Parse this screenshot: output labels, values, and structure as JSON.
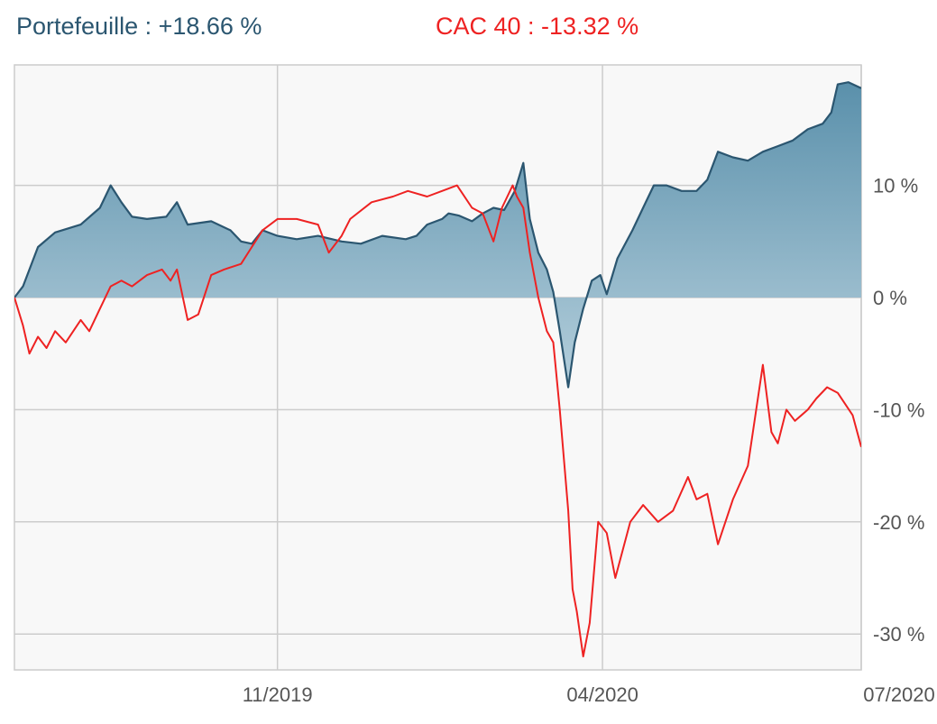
{
  "legend": {
    "portfolio_label": "Portefeuille : +18.66 %",
    "index_label": "CAC 40 : -13.32 %"
  },
  "colors": {
    "portfolio_line": "#2b5670",
    "portfolio_fill_top": "#5a90ab",
    "portfolio_fill_bottom": "#b5cfdc",
    "index_line": "#ee2222",
    "plot_bg": "#f8f8f8",
    "grid": "#cccccc",
    "axis_text": "#555555"
  },
  "chart_data": {
    "type": "area",
    "x_axis": {
      "range": [
        "2019-07-01",
        "2020-07-31"
      ],
      "ticks": [
        {
          "date": "2019-11-01",
          "label": "11/2019"
        },
        {
          "date": "2020-04-01",
          "label": "04/2020"
        },
        {
          "date": "2020-07-31",
          "label": "07/2020"
        }
      ]
    },
    "y_axis": {
      "unit": "%",
      "range": [
        -33,
        21
      ],
      "position": "right",
      "ticks": [
        {
          "value": 10,
          "label": "10 %"
        },
        {
          "value": 0,
          "label": "0 %"
        },
        {
          "value": -10,
          "label": "-10 %"
        },
        {
          "value": -20,
          "label": "-20 %"
        },
        {
          "value": -30,
          "label": "-30 %"
        }
      ]
    },
    "grid": true,
    "series": [
      {
        "name": "Portefeuille",
        "style": "area",
        "points": [
          [
            "2019-07-01",
            0
          ],
          [
            "2019-07-05",
            1
          ],
          [
            "2019-07-12",
            4.5
          ],
          [
            "2019-07-20",
            5.8
          ],
          [
            "2019-08-01",
            6.5
          ],
          [
            "2019-08-10",
            8
          ],
          [
            "2019-08-15",
            10
          ],
          [
            "2019-08-20",
            8.5
          ],
          [
            "2019-08-25",
            7.2
          ],
          [
            "2019-09-01",
            7
          ],
          [
            "2019-09-10",
            7.2
          ],
          [
            "2019-09-15",
            8.5
          ],
          [
            "2019-09-20",
            6.5
          ],
          [
            "2019-10-01",
            6.8
          ],
          [
            "2019-10-10",
            6
          ],
          [
            "2019-10-15",
            5
          ],
          [
            "2019-10-20",
            4.8
          ],
          [
            "2019-10-25",
            6
          ],
          [
            "2019-11-01",
            5.5
          ],
          [
            "2019-11-10",
            5.2
          ],
          [
            "2019-11-20",
            5.5
          ],
          [
            "2019-12-01",
            5
          ],
          [
            "2019-12-10",
            4.8
          ],
          [
            "2019-12-20",
            5.5
          ],
          [
            "2019-12-31",
            5.2
          ],
          [
            "2020-01-05",
            5.5
          ],
          [
            "2020-01-10",
            6.5
          ],
          [
            "2020-01-17",
            7
          ],
          [
            "2020-01-20",
            7.5
          ],
          [
            "2020-01-25",
            7.3
          ],
          [
            "2020-01-31",
            6.8
          ],
          [
            "2020-02-05",
            7.5
          ],
          [
            "2020-02-10",
            8
          ],
          [
            "2020-02-15",
            7.8
          ],
          [
            "2020-02-20",
            9.5
          ],
          [
            "2020-02-24",
            12
          ],
          [
            "2020-02-27",
            7
          ],
          [
            "2020-03-02",
            4
          ],
          [
            "2020-03-06",
            2.5
          ],
          [
            "2020-03-09",
            0.5
          ],
          [
            "2020-03-12",
            -3
          ],
          [
            "2020-03-16",
            -8
          ],
          [
            "2020-03-19",
            -4
          ],
          [
            "2020-03-23",
            -1
          ],
          [
            "2020-03-27",
            1.5
          ],
          [
            "2020-03-31",
            2
          ],
          [
            "2020-04-03",
            0.3
          ],
          [
            "2020-04-08",
            3.5
          ],
          [
            "2020-04-15",
            6
          ],
          [
            "2020-04-20",
            8
          ],
          [
            "2020-04-25",
            10
          ],
          [
            "2020-05-01",
            10
          ],
          [
            "2020-05-08",
            9.5
          ],
          [
            "2020-05-15",
            9.5
          ],
          [
            "2020-05-20",
            10.5
          ],
          [
            "2020-05-25",
            13
          ],
          [
            "2020-06-01",
            12.5
          ],
          [
            "2020-06-08",
            12.2
          ],
          [
            "2020-06-15",
            13
          ],
          [
            "2020-06-22",
            13.5
          ],
          [
            "2020-06-29",
            14
          ],
          [
            "2020-07-06",
            15
          ],
          [
            "2020-07-13",
            15.5
          ],
          [
            "2020-07-17",
            16.5
          ],
          [
            "2020-07-20",
            19
          ],
          [
            "2020-07-25",
            19.2
          ],
          [
            "2020-07-31",
            18.66
          ]
        ]
      },
      {
        "name": "CAC 40",
        "style": "line",
        "points": [
          [
            "2019-07-01",
            0
          ],
          [
            "2019-07-05",
            -2.5
          ],
          [
            "2019-07-08",
            -5
          ],
          [
            "2019-07-12",
            -3.5
          ],
          [
            "2019-07-16",
            -4.5
          ],
          [
            "2019-07-20",
            -3
          ],
          [
            "2019-07-25",
            -4
          ],
          [
            "2019-08-01",
            -2
          ],
          [
            "2019-08-05",
            -3
          ],
          [
            "2019-08-10",
            -1
          ],
          [
            "2019-08-15",
            1
          ],
          [
            "2019-08-20",
            1.5
          ],
          [
            "2019-08-25",
            1
          ],
          [
            "2019-09-01",
            2
          ],
          [
            "2019-09-08",
            2.5
          ],
          [
            "2019-09-12",
            1.5
          ],
          [
            "2019-09-15",
            2.5
          ],
          [
            "2019-09-20",
            -2
          ],
          [
            "2019-09-25",
            -1.5
          ],
          [
            "2019-10-01",
            2
          ],
          [
            "2019-10-07",
            2.5
          ],
          [
            "2019-10-15",
            3
          ],
          [
            "2019-10-20",
            4.5
          ],
          [
            "2019-10-25",
            6
          ],
          [
            "2019-11-01",
            7
          ],
          [
            "2019-11-10",
            7
          ],
          [
            "2019-11-20",
            6.5
          ],
          [
            "2019-11-25",
            4
          ],
          [
            "2019-12-01",
            5.5
          ],
          [
            "2019-12-05",
            7
          ],
          [
            "2019-12-15",
            8.5
          ],
          [
            "2019-12-25",
            9
          ],
          [
            "2020-01-01",
            9.5
          ],
          [
            "2020-01-10",
            9
          ],
          [
            "2020-01-17",
            9.5
          ],
          [
            "2020-01-24",
            10
          ],
          [
            "2020-01-31",
            8
          ],
          [
            "2020-02-05",
            7.5
          ],
          [
            "2020-02-10",
            5
          ],
          [
            "2020-02-14",
            8
          ],
          [
            "2020-02-19",
            10
          ],
          [
            "2020-02-21",
            9
          ],
          [
            "2020-02-24",
            8
          ],
          [
            "2020-02-27",
            4
          ],
          [
            "2020-03-02",
            0
          ],
          [
            "2020-03-06",
            -3
          ],
          [
            "2020-03-09",
            -4
          ],
          [
            "2020-03-12",
            -10
          ],
          [
            "2020-03-16",
            -19
          ],
          [
            "2020-03-18",
            -26
          ],
          [
            "2020-03-20",
            -28
          ],
          [
            "2020-03-23",
            -32
          ],
          [
            "2020-03-26",
            -29
          ],
          [
            "2020-03-30",
            -20
          ],
          [
            "2020-04-03",
            -21
          ],
          [
            "2020-04-07",
            -25
          ],
          [
            "2020-04-14",
            -20
          ],
          [
            "2020-04-20",
            -18.5
          ],
          [
            "2020-04-27",
            -20
          ],
          [
            "2020-05-04",
            -19
          ],
          [
            "2020-05-11",
            -16
          ],
          [
            "2020-05-15",
            -18
          ],
          [
            "2020-05-20",
            -17.5
          ],
          [
            "2020-05-25",
            -22
          ],
          [
            "2020-06-01",
            -18
          ],
          [
            "2020-06-08",
            -15
          ],
          [
            "2020-06-15",
            -6
          ],
          [
            "2020-06-19",
            -12
          ],
          [
            "2020-06-22",
            -13
          ],
          [
            "2020-06-26",
            -10
          ],
          [
            "2020-06-30",
            -11
          ],
          [
            "2020-07-06",
            -10
          ],
          [
            "2020-07-10",
            -9
          ],
          [
            "2020-07-15",
            -8
          ],
          [
            "2020-07-20",
            -8.5
          ],
          [
            "2020-07-27",
            -10.5
          ],
          [
            "2020-07-31",
            -13.32
          ]
        ]
      }
    ]
  }
}
